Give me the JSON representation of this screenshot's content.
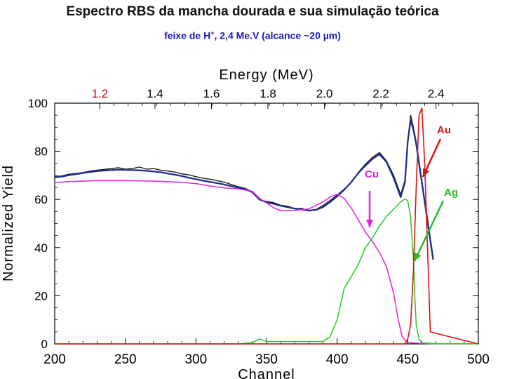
{
  "header": {
    "title": "Espectro RBS da mancha dourada e sua simulação teórica",
    "subtitle_pre": "feixe de H",
    "subtitle_sup": "+",
    "subtitle_post": ", 2,4 Me.V  (alcance ~20 µm)"
  },
  "colors": {
    "experimental": "#111111",
    "simulation_total": "#1f2f8f",
    "cu": "#e020e0",
    "ag": "#22cc22",
    "au": "#dd1111",
    "arrow_au": "#dd1111",
    "arrow_cu": "#e020e0",
    "arrow_ag": "#22bb22",
    "energy_tick_highlight": "#c00000"
  },
  "chart_data": {
    "type": "line",
    "xlabel": "Channel",
    "ylabel": "Normalized  Yield",
    "xlim": [
      200,
      500
    ],
    "ylim": [
      0,
      100
    ],
    "x_ticks": [
      200,
      250,
      300,
      350,
      400,
      450,
      500
    ],
    "y_ticks": [
      0,
      20,
      40,
      60,
      80,
      100
    ],
    "top_axis": {
      "label": "Energy  (MeV)",
      "ticks": [
        {
          "label": "1.2",
          "channel": 232
        },
        {
          "label": "1.4",
          "channel": 271
        },
        {
          "label": "1.6",
          "channel": 311
        },
        {
          "label": "1.8",
          "channel": 351
        },
        {
          "label": "2.0",
          "channel": 391
        },
        {
          "label": "2.2",
          "channel": 431
        },
        {
          "label": "2.4",
          "channel": 470
        }
      ]
    },
    "annotations": [
      {
        "text": "Au",
        "color": "#dd1111"
      },
      {
        "text": "Cu",
        "color": "#e020e0"
      },
      {
        "text": "Ag",
        "color": "#22bb22"
      }
    ],
    "series": [
      {
        "key": "experimental",
        "x": [
          200,
          205,
          210,
          215,
          220,
          225,
          230,
          235,
          240,
          245,
          250,
          255,
          260,
          265,
          270,
          275,
          280,
          285,
          290,
          295,
          300,
          305,
          310,
          315,
          320,
          325,
          330,
          335,
          340,
          345,
          350,
          355,
          360,
          365,
          370,
          375,
          380,
          385,
          390,
          395,
          400,
          405,
          410,
          415,
          420,
          425,
          430,
          435,
          440,
          445,
          448,
          450,
          452,
          454,
          456,
          458,
          460,
          462,
          464,
          466,
          468
        ],
        "y": [
          69.5,
          69.8,
          70.5,
          70.8,
          71.2,
          71.8,
          72.2,
          72.5,
          72.8,
          73.2,
          72.6,
          72.8,
          73.5,
          72.6,
          72.8,
          72.2,
          71.8,
          71.4,
          70.6,
          70.2,
          69.5,
          68.8,
          68.4,
          67.8,
          67.2,
          66.2,
          65.3,
          64.6,
          63.2,
          59.8,
          59.2,
          58.7,
          57.6,
          57.2,
          56.2,
          56.3,
          55.2,
          55.8,
          57.5,
          59.6,
          61.8,
          64.3,
          67.1,
          71.3,
          74.6,
          77.5,
          79.5,
          76.0,
          70.0,
          62.0,
          68.0,
          84.0,
          95.0,
          90.0,
          84.0,
          76.0,
          68.0,
          60.0,
          52.0,
          44.0,
          36.0
        ]
      },
      {
        "key": "simulation_total",
        "x": [
          200,
          205,
          210,
          215,
          220,
          225,
          230,
          235,
          240,
          245,
          250,
          255,
          260,
          265,
          270,
          275,
          280,
          285,
          290,
          295,
          300,
          305,
          310,
          315,
          320,
          325,
          330,
          335,
          340,
          345,
          350,
          355,
          360,
          365,
          370,
          375,
          380,
          385,
          390,
          395,
          400,
          405,
          410,
          415,
          420,
          425,
          430,
          435,
          440,
          445,
          448,
          450,
          452,
          454,
          456,
          458,
          460,
          462,
          464,
          466,
          468
        ],
        "y": [
          69.2,
          69.5,
          70.1,
          70.5,
          71.0,
          71.4,
          71.8,
          72.0,
          72.2,
          72.4,
          72.3,
          72.2,
          72.1,
          71.9,
          71.6,
          71.3,
          70.8,
          70.3,
          69.7,
          69.0,
          68.4,
          67.8,
          67.3,
          66.8,
          66.2,
          65.5,
          64.9,
          64.3,
          63.0,
          60.0,
          58.8,
          58.2,
          57.4,
          56.8,
          56.2,
          55.8,
          55.4,
          55.7,
          56.8,
          58.9,
          61.3,
          64.0,
          67.2,
          71.0,
          74.0,
          76.8,
          78.8,
          75.5,
          69.0,
          61.0,
          67.0,
          84.0,
          93.0,
          89.0,
          83.0,
          75.0,
          67.0,
          59.0,
          51.0,
          43.0,
          35.0
        ]
      },
      {
        "key": "cu",
        "x": [
          200,
          210,
          220,
          230,
          240,
          250,
          260,
          270,
          280,
          290,
          300,
          310,
          320,
          330,
          340,
          345,
          350,
          355,
          360,
          370,
          380,
          390,
          395,
          400,
          405,
          410,
          415,
          420,
          425,
          430,
          435,
          440,
          443,
          446,
          450,
          460,
          470,
          480,
          500
        ],
        "y": [
          67,
          67.4,
          67.6,
          67.8,
          67.8,
          67.8,
          67.7,
          67.6,
          67.4,
          67.1,
          66.6,
          65.6,
          64.8,
          64.4,
          63.4,
          60.5,
          58.6,
          56.6,
          55.4,
          55.5,
          56.1,
          59.0,
          61.0,
          62.2,
          60.5,
          56.5,
          51.5,
          46.5,
          42.5,
          38.0,
          32.0,
          21.0,
          11.0,
          3.0,
          0.5,
          0.2,
          0.1,
          0.1,
          0.1
        ]
      },
      {
        "key": "ag",
        "x": [
          200,
          300,
          330,
          340,
          345,
          350,
          360,
          370,
          380,
          390,
          395,
          400,
          405,
          410,
          415,
          420,
          425,
          430,
          435,
          440,
          445,
          448,
          450,
          452,
          454,
          455,
          456,
          458,
          460,
          465,
          470,
          500
        ],
        "y": [
          0,
          0,
          0,
          0.5,
          2.0,
          1.0,
          1.0,
          1.0,
          1.0,
          1.0,
          3.0,
          10.0,
          23.0,
          28.0,
          33.0,
          40.0,
          44.0,
          49.0,
          53.0,
          56.0,
          59.0,
          60.2,
          59.5,
          53.0,
          35.0,
          20.0,
          8.0,
          2.0,
          0.5,
          0.2,
          0.1,
          0.1
        ]
      },
      {
        "key": "au",
        "x": [
          200,
          440,
          448,
          450,
          452,
          454,
          456,
          458,
          460,
          462,
          464,
          466,
          500
        ],
        "y": [
          0,
          0,
          0,
          2,
          8,
          30,
          65,
          95,
          98,
          75,
          40,
          5,
          0
        ]
      }
    ]
  }
}
